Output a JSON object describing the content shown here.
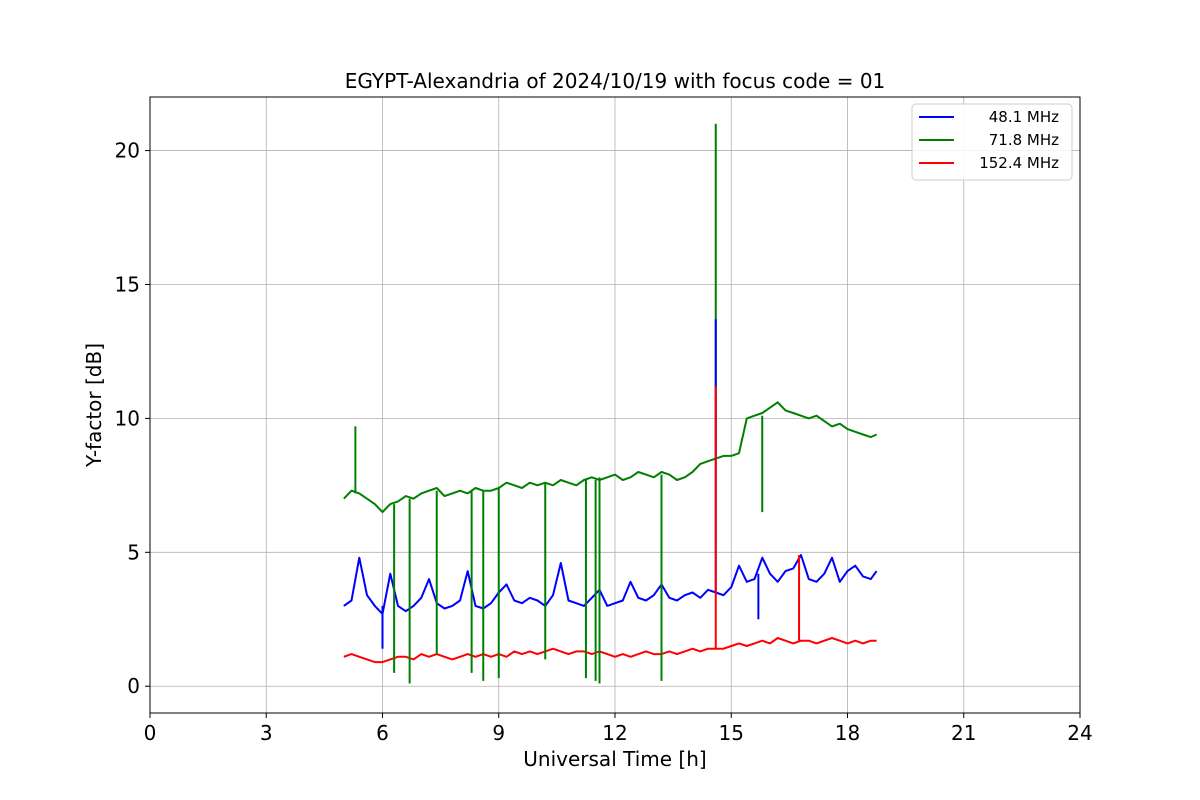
{
  "chart_data": {
    "type": "line",
    "title": "EGYPT-Alexandria of 2024/10/19 with focus code = 01",
    "xlabel": "Universal Time [h]",
    "ylabel": "Y-factor [dB]",
    "xlim": [
      0,
      24
    ],
    "ylim": [
      -1,
      22
    ],
    "xticks": [
      0,
      3,
      6,
      9,
      12,
      15,
      18,
      21,
      24
    ],
    "yticks": [
      0,
      5,
      10,
      15,
      20
    ],
    "grid": true,
    "legend_position": "top-right",
    "series": [
      {
        "name": "48.1 MHz",
        "color": "#0000ff",
        "x": [
          5.0,
          5.2,
          5.4,
          5.6,
          5.8,
          6.0,
          6.2,
          6.4,
          6.6,
          6.8,
          7.0,
          7.2,
          7.4,
          7.6,
          7.8,
          8.0,
          8.2,
          8.4,
          8.6,
          8.8,
          9.0,
          9.2,
          9.4,
          9.6,
          9.8,
          10.0,
          10.2,
          10.4,
          10.6,
          10.8,
          11.0,
          11.2,
          11.4,
          11.6,
          11.8,
          12.0,
          12.2,
          12.4,
          12.6,
          12.8,
          13.0,
          13.2,
          13.4,
          13.6,
          13.8,
          14.0,
          14.2,
          14.4,
          14.6,
          14.8,
          15.0,
          15.2,
          15.4,
          15.6,
          15.8,
          16.0,
          16.2,
          16.4,
          16.6,
          16.8,
          17.0,
          17.2,
          17.4,
          17.6,
          17.8,
          18.0,
          18.2,
          18.4,
          18.6,
          18.75
        ],
        "y": [
          3.0,
          3.2,
          4.8,
          3.4,
          3.0,
          2.7,
          4.2,
          3.0,
          2.8,
          3.0,
          3.3,
          4.0,
          3.1,
          2.9,
          3.0,
          3.2,
          4.3,
          3.0,
          2.9,
          3.1,
          3.5,
          3.8,
          3.2,
          3.1,
          3.3,
          3.2,
          3.0,
          3.4,
          4.6,
          3.2,
          3.1,
          3.0,
          3.3,
          3.6,
          3.0,
          3.1,
          3.2,
          3.9,
          3.3,
          3.2,
          3.4,
          3.8,
          3.3,
          3.2,
          3.4,
          3.5,
          3.3,
          3.6,
          3.5,
          3.4,
          3.7,
          4.5,
          3.9,
          4.0,
          4.8,
          4.2,
          3.9,
          4.3,
          4.4,
          4.9,
          4.0,
          3.9,
          4.2,
          4.8,
          3.9,
          4.3,
          4.5,
          4.1,
          4.0,
          4.3
        ]
      },
      {
        "name": "71.8 MHz",
        "color": "#008000",
        "x": [
          5.0,
          5.2,
          5.4,
          5.6,
          5.8,
          6.0,
          6.2,
          6.4,
          6.6,
          6.8,
          7.0,
          7.2,
          7.4,
          7.6,
          7.8,
          8.0,
          8.2,
          8.4,
          8.6,
          8.8,
          9.0,
          9.2,
          9.4,
          9.6,
          9.8,
          10.0,
          10.2,
          10.4,
          10.6,
          10.8,
          11.0,
          11.2,
          11.4,
          11.6,
          11.8,
          12.0,
          12.2,
          12.4,
          12.6,
          12.8,
          13.0,
          13.2,
          13.4,
          13.6,
          13.8,
          14.0,
          14.2,
          14.4,
          14.6,
          14.8,
          15.0,
          15.2,
          15.4,
          15.6,
          15.8,
          16.0,
          16.2,
          16.4,
          16.6,
          16.8,
          17.0,
          17.2,
          17.4,
          17.6,
          17.8,
          18.0,
          18.2,
          18.4,
          18.6,
          18.75
        ],
        "y": [
          7.0,
          7.3,
          7.2,
          7.0,
          6.8,
          6.5,
          6.8,
          6.9,
          7.1,
          7.0,
          7.2,
          7.3,
          7.4,
          7.1,
          7.2,
          7.3,
          7.2,
          7.4,
          7.3,
          7.3,
          7.4,
          7.6,
          7.5,
          7.4,
          7.6,
          7.5,
          7.6,
          7.5,
          7.7,
          7.6,
          7.5,
          7.7,
          7.8,
          7.7,
          7.8,
          7.9,
          7.7,
          7.8,
          8.0,
          7.9,
          7.8,
          8.0,
          7.9,
          7.7,
          7.8,
          8.0,
          8.3,
          8.4,
          8.5,
          8.6,
          8.6,
          8.7,
          10.0,
          10.1,
          10.2,
          10.4,
          10.6,
          10.3,
          10.2,
          10.1,
          10.0,
          10.1,
          9.9,
          9.7,
          9.8,
          9.6,
          9.5,
          9.4,
          9.3,
          9.4
        ]
      },
      {
        "name": "152.4 MHz",
        "color": "#ff0000",
        "x": [
          5.0,
          5.2,
          5.4,
          5.6,
          5.8,
          6.0,
          6.2,
          6.4,
          6.6,
          6.8,
          7.0,
          7.2,
          7.4,
          7.6,
          7.8,
          8.0,
          8.2,
          8.4,
          8.6,
          8.8,
          9.0,
          9.2,
          9.4,
          9.6,
          9.8,
          10.0,
          10.2,
          10.4,
          10.6,
          10.8,
          11.0,
          11.2,
          11.4,
          11.6,
          11.8,
          12.0,
          12.2,
          12.4,
          12.6,
          12.8,
          13.0,
          13.2,
          13.4,
          13.6,
          13.8,
          14.0,
          14.2,
          14.4,
          14.6,
          14.8,
          15.0,
          15.2,
          15.4,
          15.6,
          15.8,
          16.0,
          16.2,
          16.4,
          16.6,
          16.8,
          17.0,
          17.2,
          17.4,
          17.6,
          17.8,
          18.0,
          18.2,
          18.4,
          18.6,
          18.75
        ],
        "y": [
          1.1,
          1.2,
          1.1,
          1.0,
          0.9,
          0.9,
          1.0,
          1.1,
          1.1,
          1.0,
          1.2,
          1.1,
          1.2,
          1.1,
          1.0,
          1.1,
          1.2,
          1.1,
          1.2,
          1.1,
          1.2,
          1.1,
          1.3,
          1.2,
          1.3,
          1.2,
          1.3,
          1.4,
          1.3,
          1.2,
          1.3,
          1.3,
          1.2,
          1.3,
          1.2,
          1.1,
          1.2,
          1.1,
          1.2,
          1.3,
          1.2,
          1.2,
          1.3,
          1.2,
          1.3,
          1.4,
          1.3,
          1.4,
          1.4,
          1.4,
          1.5,
          1.6,
          1.5,
          1.6,
          1.7,
          1.6,
          1.8,
          1.7,
          1.6,
          1.7,
          1.7,
          1.6,
          1.7,
          1.8,
          1.7,
          1.6,
          1.7,
          1.6,
          1.7,
          1.7
        ]
      }
    ],
    "spikes": [
      {
        "series": "71.8 MHz",
        "x": 14.6,
        "from": 8.4,
        "to": 21.0
      },
      {
        "series": "48.1 MHz",
        "x": 14.6,
        "from": 3.5,
        "to": 13.7
      },
      {
        "series": "152.4 MHz",
        "x": 14.6,
        "from": 1.4,
        "to": 11.2
      },
      {
        "series": "152.4 MHz",
        "x": 16.75,
        "from": 1.7,
        "to": 4.9
      },
      {
        "series": "71.8 MHz",
        "x": 5.3,
        "from": 7.2,
        "to": 9.7
      },
      {
        "series": "71.8 MHz",
        "x": 15.8,
        "from": 10.1,
        "to": 6.5
      },
      {
        "series": "71.8 MHz",
        "x": 6.3,
        "from": 6.8,
        "to": 0.5
      },
      {
        "series": "71.8 MHz",
        "x": 6.7,
        "from": 7.0,
        "to": 0.1
      },
      {
        "series": "71.8 MHz",
        "x": 7.4,
        "from": 7.3,
        "to": 1.2
      },
      {
        "series": "71.8 MHz",
        "x": 8.3,
        "from": 7.3,
        "to": 0.5
      },
      {
        "series": "71.8 MHz",
        "x": 8.6,
        "from": 7.3,
        "to": 0.2
      },
      {
        "series": "71.8 MHz",
        "x": 9.0,
        "from": 7.4,
        "to": 0.3
      },
      {
        "series": "71.8 MHz",
        "x": 10.2,
        "from": 7.6,
        "to": 1.0
      },
      {
        "series": "71.8 MHz",
        "x": 11.25,
        "from": 7.7,
        "to": 0.3
      },
      {
        "series": "71.8 MHz",
        "x": 11.5,
        "from": 7.7,
        "to": 0.2
      },
      {
        "series": "71.8 MHz",
        "x": 11.6,
        "from": 7.8,
        "to": 0.1
      },
      {
        "series": "71.8 MHz",
        "x": 13.2,
        "from": 7.9,
        "to": 0.2
      },
      {
        "series": "48.1 MHz",
        "x": 6.0,
        "from": 3.0,
        "to": 1.4
      },
      {
        "series": "48.1 MHz",
        "x": 15.7,
        "from": 4.2,
        "to": 2.5
      }
    ]
  }
}
